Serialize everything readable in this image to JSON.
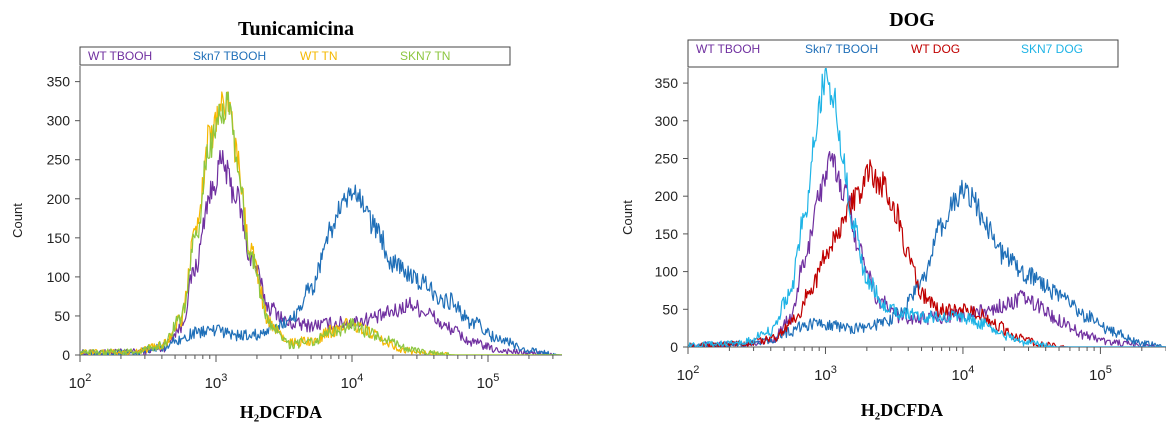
{
  "chart_data": [
    {
      "type": "line",
      "title": "Tunicamicina",
      "xlabel": "H₂DCFDA",
      "ylabel": "Count",
      "x_scale": "log",
      "xlim": [
        100,
        350000
      ],
      "ylim": [
        0,
        370
      ],
      "y_ticks": [
        0,
        50,
        100,
        150,
        200,
        250,
        300,
        350
      ],
      "x_ticks": [
        {
          "value": 100,
          "mantissa": "10",
          "exp": "2"
        },
        {
          "value": 1000,
          "mantissa": "10",
          "exp": "3"
        },
        {
          "value": 10000,
          "mantissa": "10",
          "exp": "4"
        },
        {
          "value": 100000,
          "mantissa": "10",
          "exp": "5"
        }
      ],
      "grid": false,
      "legend_position": "top",
      "series": [
        {
          "name": "WT TBOOH",
          "color": "#7030a0",
          "x": [
            100,
            250,
            400,
            550,
            700,
            900,
            1100,
            1400,
            1800,
            2500,
            3500,
            5000,
            7000,
            10000,
            15000,
            20000,
            27000,
            35000,
            50000,
            80000,
            120000,
            200000,
            350000
          ],
          "y": [
            3,
            4,
            8,
            35,
            110,
            205,
            245,
            205,
            125,
            60,
            40,
            38,
            40,
            42,
            48,
            55,
            65,
            55,
            35,
            15,
            6,
            2,
            0
          ]
        },
        {
          "name": "Skn7 TBOOH",
          "color": "#1f6fb8",
          "x": [
            100,
            250,
            400,
            550,
            700,
            900,
            1100,
            1400,
            1800,
            2500,
            3500,
            5000,
            7000,
            8500,
            10000,
            12000,
            15000,
            20000,
            30000,
            50000,
            80000,
            120000,
            200000,
            350000
          ],
          "y": [
            2,
            3,
            10,
            20,
            28,
            32,
            30,
            25,
            25,
            30,
            45,
            85,
            160,
            190,
            205,
            195,
            160,
            120,
            95,
            70,
            40,
            20,
            5,
            0
          ]
        },
        {
          "name": "WT TN",
          "color": "#f5b800",
          "x": [
            100,
            250,
            400,
            550,
            700,
            900,
            1100,
            1250,
            1400,
            1800,
            2500,
            3500,
            5000,
            7000,
            10000,
            13000,
            18000,
            25000,
            35000,
            60000
          ],
          "y": [
            3,
            4,
            12,
            45,
            150,
            280,
            320,
            325,
            260,
            130,
            40,
            15,
            18,
            30,
            40,
            30,
            15,
            6,
            2,
            0
          ]
        },
        {
          "name": "SKN7 TN",
          "color": "#8cc63f",
          "x": [
            100,
            250,
            400,
            550,
            700,
            900,
            1100,
            1250,
            1400,
            1800,
            2500,
            3500,
            5000,
            7000,
            10000,
            13000,
            18000,
            25000,
            35000,
            60000
          ],
          "y": [
            3,
            4,
            12,
            45,
            145,
            270,
            315,
            320,
            255,
            125,
            38,
            14,
            16,
            28,
            38,
            30,
            18,
            8,
            3,
            0
          ]
        }
      ]
    },
    {
      "type": "line",
      "title": "DOG",
      "xlabel": "H₂DCFDA",
      "ylabel": "Count",
      "x_scale": "log",
      "xlim": [
        100,
        300000
      ],
      "ylim": [
        0,
        370
      ],
      "y_ticks": [
        0,
        50,
        100,
        150,
        200,
        250,
        300,
        350
      ],
      "x_ticks": [
        {
          "value": 100,
          "mantissa": "10",
          "exp": "2"
        },
        {
          "value": 1000,
          "mantissa": "10",
          "exp": "3"
        },
        {
          "value": 10000,
          "mantissa": "10",
          "exp": "4"
        },
        {
          "value": 100000,
          "mantissa": "10",
          "exp": "5"
        }
      ],
      "grid": false,
      "legend_position": "top",
      "series": [
        {
          "name": "WT TBOOH",
          "color": "#7030a0",
          "x": [
            100,
            250,
            400,
            550,
            700,
            900,
            1100,
            1400,
            1800,
            2500,
            3500,
            5000,
            7000,
            10000,
            15000,
            20000,
            27000,
            35000,
            50000,
            80000,
            120000,
            200000,
            300000
          ],
          "y": [
            3,
            4,
            8,
            35,
            110,
            205,
            245,
            205,
            125,
            60,
            40,
            38,
            40,
            42,
            48,
            55,
            65,
            55,
            35,
            15,
            6,
            2,
            0
          ]
        },
        {
          "name": "Skn7 TBOOH",
          "color": "#1f6fb8",
          "x": [
            100,
            250,
            400,
            550,
            700,
            900,
            1100,
            1400,
            1800,
            2500,
            3500,
            5000,
            7000,
            8500,
            10000,
            12000,
            15000,
            20000,
            30000,
            50000,
            80000,
            120000,
            200000,
            300000
          ],
          "y": [
            2,
            3,
            10,
            20,
            28,
            32,
            30,
            25,
            25,
            30,
            45,
            85,
            160,
            190,
            205,
            195,
            160,
            120,
            95,
            70,
            40,
            20,
            5,
            0
          ]
        },
        {
          "name": "WT DOG",
          "color": "#c00000",
          "x": [
            100,
            250,
            400,
            600,
            800,
            1000,
            1300,
            1700,
            2100,
            2600,
            3200,
            4000,
            5000,
            6500,
            8000,
            10000,
            13000,
            17000,
            25000,
            40000,
            60000
          ],
          "y": [
            2,
            4,
            10,
            35,
            80,
            120,
            160,
            200,
            230,
            215,
            180,
            120,
            70,
            50,
            48,
            50,
            45,
            30,
            12,
            3,
            0
          ]
        },
        {
          "name": "SKN7 DOG",
          "color": "#1fb4e6",
          "x": [
            100,
            250,
            400,
            550,
            700,
            850,
            1000,
            1150,
            1300,
            1600,
            2000,
            2700,
            3500,
            5000,
            7000,
            10000,
            14000,
            20000,
            30000,
            50000
          ],
          "y": [
            2,
            6,
            20,
            70,
            170,
            290,
            360,
            330,
            260,
            160,
            90,
            55,
            45,
            40,
            40,
            40,
            30,
            15,
            5,
            0
          ]
        }
      ]
    }
  ]
}
